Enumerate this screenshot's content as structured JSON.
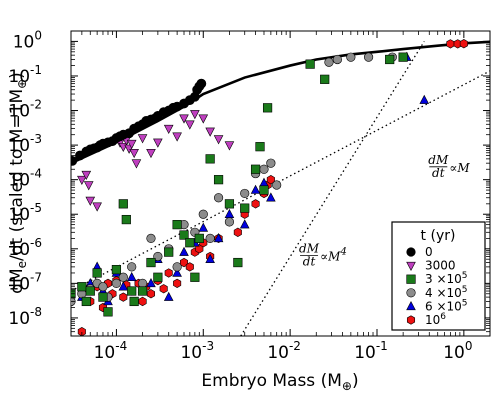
{
  "chart_data": {
    "type": "scatter",
    "xlabel": "Embryo Mass (M",
    "xlabel_sub": "⊕",
    "xlabel_end": ")",
    "ylabel": "dM",
    "ylabel_sub": "e",
    "ylabel_end": "/dt (scaled to M=1M",
    "ylabel_sub2": "⊕",
    "ylabel_close": ")",
    "x_scale": "log",
    "y_scale": "log",
    "xlim": [
      3e-05,
      2.0
    ],
    "ylim": [
      3e-09,
      2.0
    ],
    "x_ticks": [
      {
        "value": 0.0001,
        "base": "10",
        "exp": "-4"
      },
      {
        "value": 0.001,
        "base": "10",
        "exp": "-3"
      },
      {
        "value": 0.01,
        "base": "10",
        "exp": "-2"
      },
      {
        "value": 0.1,
        "base": "10",
        "exp": "-1"
      },
      {
        "value": 1.0,
        "base": "10",
        "exp": "0"
      }
    ],
    "y_ticks": [
      {
        "value": 1e-08,
        "base": "10",
        "exp": "-8"
      },
      {
        "value": 1e-07,
        "base": "10",
        "exp": "-7"
      },
      {
        "value": 1e-06,
        "base": "10",
        "exp": "-6"
      },
      {
        "value": 1e-05,
        "base": "10",
        "exp": "-5"
      },
      {
        "value": 0.0001,
        "base": "10",
        "exp": "-4"
      },
      {
        "value": 0.001,
        "base": "10",
        "exp": "-3"
      },
      {
        "value": 0.01,
        "base": "10",
        "exp": "-2"
      },
      {
        "value": 0.1,
        "base": "10",
        "exp": "-1"
      },
      {
        "value": 1.0,
        "base": "10",
        "exp": "0"
      }
    ],
    "grid": false,
    "legend_position": "lower-right",
    "legend": {
      "title": "t (yr)",
      "entries": [
        {
          "label": "0",
          "label_exp": "",
          "marker": "circle",
          "color": "#000000"
        },
        {
          "label": "3000",
          "label_exp": "",
          "marker": "triangle-down",
          "color": "#bf3fbf"
        },
        {
          "label": "3 ×10",
          "label_exp": "5",
          "marker": "square",
          "color": "#1a7a1a"
        },
        {
          "label": "4 ×10",
          "label_exp": "5",
          "marker": "circle",
          "color": "#8c8c8c"
        },
        {
          "label": "6 ×10",
          "label_exp": "5",
          "marker": "triangle-up",
          "color": "#0000dd"
        },
        {
          "label": "10",
          "label_exp": "6",
          "marker": "hexagon",
          "color": "#ee1111"
        }
      ]
    },
    "annotations": [
      {
        "num": "dM",
        "den": "dt",
        "text": "∝M",
        "exp": "",
        "anchor_x": 0.4,
        "anchor_y": 0.00022
      },
      {
        "num": "dM",
        "den": "dt",
        "text": "∝M",
        "exp": "4",
        "anchor_x": 0.013,
        "anchor_y": 6e-07
      }
    ],
    "reference_lines": [
      {
        "name": "linear",
        "style": "dotted",
        "points": [
          [
            3e-05,
            6e-08
          ],
          [
            2.0,
            0.14
          ]
        ]
      },
      {
        "name": "quartic",
        "style": "dotted",
        "points": [
          [
            0.0027,
            3e-09
          ],
          [
            0.35,
            1.0
          ]
        ]
      }
    ],
    "series": [
      {
        "name": "0",
        "marker": "circle",
        "color": "#000000",
        "line_x": [
          3e-05,
          0.0001,
          0.0003,
          0.0006,
          0.001,
          0.003,
          0.01,
          0.02,
          0.05,
          0.1,
          0.2,
          0.5,
          1.0,
          2.0
        ],
        "line_y": [
          0.0003,
          0.0012,
          0.005,
          0.013,
          0.03,
          0.09,
          0.2,
          0.3,
          0.42,
          0.5,
          0.6,
          0.75,
          0.88,
          0.97
        ],
        "points": [
          [
            3.1e-05,
            0.00035
          ],
          [
            3.8e-05,
            0.0005
          ],
          [
            4.5e-05,
            0.00065
          ],
          [
            5e-05,
            0.00075
          ],
          [
            5.5e-05,
            0.0008
          ],
          [
            6e-05,
            0.00085
          ],
          [
            6.5e-05,
            0.001
          ],
          [
            7e-05,
            0.0011
          ],
          [
            8e-05,
            0.0012
          ],
          [
            9e-05,
            0.0013
          ],
          [
            0.0001,
            0.0016
          ],
          [
            0.00011,
            0.0018
          ],
          [
            0.00012,
            0.002
          ],
          [
            0.00014,
            0.0022
          ],
          [
            0.00016,
            0.003
          ],
          [
            0.00018,
            0.0035
          ],
          [
            0.0002,
            0.004
          ],
          [
            0.00022,
            0.005
          ],
          [
            0.00025,
            0.0055
          ],
          [
            0.00028,
            0.006
          ],
          [
            0.0003,
            0.007
          ],
          [
            0.00035,
            0.009
          ],
          [
            0.0004,
            0.01
          ],
          [
            0.00045,
            0.012
          ],
          [
            0.0005,
            0.013
          ],
          [
            0.0006,
            0.016
          ],
          [
            0.0007,
            0.02
          ],
          [
            0.0008,
            0.025
          ],
          [
            0.00085,
            0.04
          ],
          [
            0.0009,
            0.05
          ],
          [
            0.00095,
            0.06
          ]
        ]
      },
      {
        "name": "3000",
        "marker": "triangle-down",
        "color": "#bf3fbf",
        "points": [
          [
            4e-05,
            0.0001
          ],
          [
            4.5e-05,
            0.00014
          ],
          [
            4.8e-05,
            7e-05
          ],
          [
            5e-05,
            2.5e-05
          ],
          [
            6e-05,
            1.7e-05
          ],
          [
            0.00011,
            0.0012
          ],
          [
            0.00012,
            0.0009
          ],
          [
            0.00013,
            0.0014
          ],
          [
            0.00014,
            0.0008
          ],
          [
            0.00015,
            0.0011
          ],
          [
            0.00016,
            0.0006
          ],
          [
            0.00017,
            0.0003
          ],
          [
            0.0002,
            0.0016
          ],
          [
            0.00025,
            0.0006
          ],
          [
            0.0003,
            0.0012
          ],
          [
            0.0004,
            0.003
          ],
          [
            0.0005,
            0.0018
          ],
          [
            0.0006,
            0.006
          ],
          [
            0.0007,
            0.004
          ],
          [
            0.0008,
            0.008
          ],
          [
            0.001,
            0.006
          ],
          [
            0.0012,
            0.0025
          ],
          [
            0.0015,
            0.0015
          ],
          [
            0.002,
            0.001
          ]
        ]
      },
      {
        "name": "3 ×10^5",
        "marker": "square",
        "color": "#1a7a1a",
        "points": [
          [
            3e-05,
            5e-08
          ],
          [
            4e-05,
            8e-08
          ],
          [
            4.5e-05,
            3e-08
          ],
          [
            5e-05,
            6e-08
          ],
          [
            6e-05,
            2e-07
          ],
          [
            7e-05,
            4e-08
          ],
          [
            8e-05,
            1.5e-08
          ],
          [
            0.0001,
            2.5e-07
          ],
          [
            0.00012,
            2e-05
          ],
          [
            0.00013,
            7e-06
          ],
          [
            0.00015,
            6e-08
          ],
          [
            0.00016,
            3e-08
          ],
          [
            0.0002,
            6e-08
          ],
          [
            0.00025,
            4e-07
          ],
          [
            0.0003,
            1.5e-07
          ],
          [
            0.0004,
            8e-07
          ],
          [
            0.0005,
            5e-06
          ],
          [
            0.0006,
            2.5e-06
          ],
          [
            0.0007,
            1.5e-06
          ],
          [
            0.0008,
            1.5e-07
          ],
          [
            0.0009,
            2e-06
          ],
          [
            0.0012,
            0.0004
          ],
          [
            0.0015,
            0.0001
          ],
          [
            0.002,
            2e-05
          ],
          [
            0.0025,
            4e-07
          ],
          [
            0.003,
            1.5e-05
          ],
          [
            0.004,
            0.0002
          ],
          [
            0.0045,
            0.0009
          ],
          [
            0.005,
            5e-05
          ],
          [
            0.0055,
            0.012
          ],
          [
            0.017,
            0.22
          ],
          [
            0.025,
            0.08
          ],
          [
            0.14,
            0.3
          ],
          [
            0.2,
            0.35
          ]
        ]
      },
      {
        "name": "4 ×10^5",
        "marker": "circle",
        "color": "#8c8c8c",
        "points": [
          [
            3e-05,
            3e-08
          ],
          [
            4e-05,
            5e-08
          ],
          [
            5e-05,
            7e-08
          ],
          [
            6e-05,
            1e-07
          ],
          [
            7e-05,
            8e-08
          ],
          [
            8e-05,
            4e-08
          ],
          [
            0.0001,
            1e-07
          ],
          [
            0.00012,
            1.5e-07
          ],
          [
            0.00015,
            3e-07
          ],
          [
            0.0002,
            1e-07
          ],
          [
            0.00025,
            2e-06
          ],
          [
            0.0003,
            6e-07
          ],
          [
            0.0004,
            1e-06
          ],
          [
            0.0005,
            3e-07
          ],
          [
            0.0006,
            5e-06
          ],
          [
            0.0008,
            3e-06
          ],
          [
            0.001,
            1e-05
          ],
          [
            0.0012,
            2e-06
          ],
          [
            0.0015,
            3e-05
          ],
          [
            0.002,
            6e-06
          ],
          [
            0.003,
            4e-05
          ],
          [
            0.004,
            0.00015
          ],
          [
            0.005,
            0.0002
          ],
          [
            0.006,
            0.0003
          ],
          [
            0.007,
            7e-05
          ],
          [
            0.028,
            0.25
          ],
          [
            0.035,
            0.3
          ],
          [
            0.05,
            0.35
          ],
          [
            0.08,
            0.35
          ],
          [
            0.15,
            0.35
          ]
        ]
      },
      {
        "name": "6 ×10^5",
        "marker": "triangle-up",
        "color": "#0000dd",
        "points": [
          [
            4e-05,
            4e-08
          ],
          [
            5e-05,
            1e-07
          ],
          [
            6e-05,
            3e-07
          ],
          [
            7e-05,
            6e-08
          ],
          [
            8e-05,
            3e-08
          ],
          [
            0.0001,
            2e-07
          ],
          [
            0.00012,
            8e-08
          ],
          [
            0.00015,
            1.5e-07
          ],
          [
            0.0002,
            7e-08
          ],
          [
            0.00025,
            1e-07
          ],
          [
            0.0003,
            5e-07
          ],
          [
            0.0004,
            4e-08
          ],
          [
            0.0005,
            2e-07
          ],
          [
            0.0006,
            8e-07
          ],
          [
            0.0008,
            1.5e-06
          ],
          [
            0.001,
            4e-06
          ],
          [
            0.0012,
            5e-07
          ],
          [
            0.0015,
            2e-06
          ],
          [
            0.002,
            1e-05
          ],
          [
            0.003,
            5e-06
          ],
          [
            0.004,
            5e-05
          ],
          [
            0.005,
            8e-05
          ],
          [
            0.006,
            3e-05
          ],
          [
            0.22,
            0.35
          ],
          [
            0.35,
            0.02
          ]
        ]
      },
      {
        "name": "10^6",
        "marker": "hexagon",
        "color": "#ee1111",
        "points": [
          [
            4e-05,
            4e-09
          ],
          [
            4.5e-05,
            6e-08
          ],
          [
            5e-05,
            3e-08
          ],
          [
            6e-05,
            8e-08
          ],
          [
            7e-05,
            2e-08
          ],
          [
            8e-05,
            1e-07
          ],
          [
            9e-05,
            5e-08
          ],
          [
            0.0001,
            1.2e-07
          ],
          [
            0.00012,
            4e-08
          ],
          [
            0.00013,
            9e-08
          ],
          [
            0.00015,
            6e-08
          ],
          [
            0.00018,
            1e-07
          ],
          [
            0.0002,
            3e-08
          ],
          [
            0.00022,
            8e-08
          ],
          [
            0.00025,
            5e-08
          ],
          [
            0.0003,
            1.2e-07
          ],
          [
            0.00035,
            7e-08
          ],
          [
            0.0004,
            2e-07
          ],
          [
            0.0005,
            1e-07
          ],
          [
            0.0006,
            4e-07
          ],
          [
            0.0007,
            3e-07
          ],
          [
            0.0008,
            8e-07
          ],
          [
            0.0009,
            1e-06
          ],
          [
            0.001,
            1.5e-06
          ],
          [
            0.0012,
            6e-07
          ],
          [
            0.0015,
            2e-06
          ],
          [
            0.002,
            6e-06
          ],
          [
            0.0025,
            3e-06
          ],
          [
            0.003,
            1e-05
          ],
          [
            0.004,
            2e-05
          ],
          [
            0.005,
            4e-05
          ],
          [
            0.0055,
            7e-05
          ],
          [
            0.006,
            0.0001
          ],
          [
            0.7,
            0.85
          ],
          [
            0.85,
            0.85
          ],
          [
            1.0,
            0.86
          ]
        ]
      }
    ]
  }
}
